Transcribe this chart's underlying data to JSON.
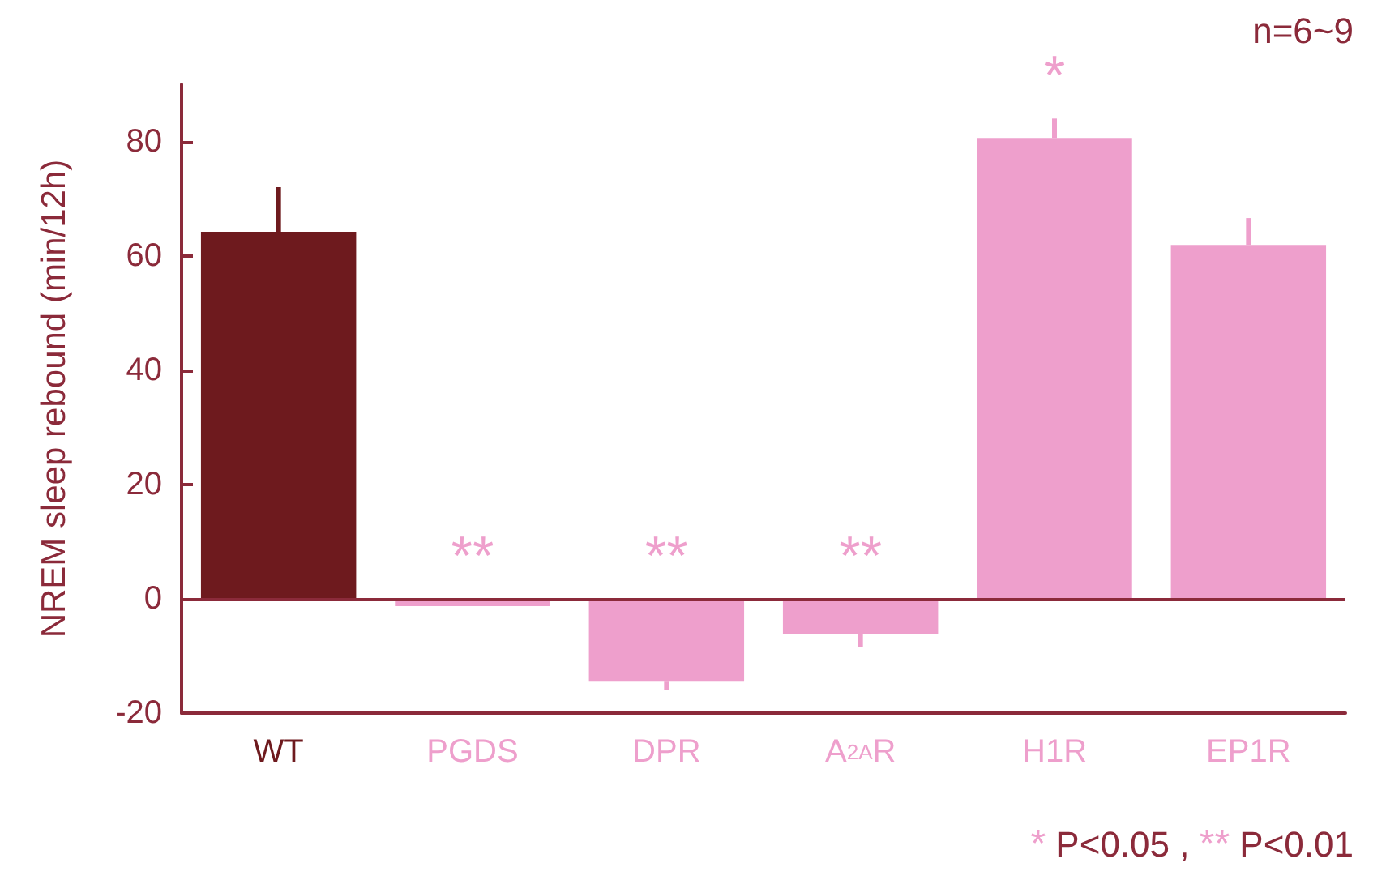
{
  "chart_data": {
    "type": "bar",
    "ylabel": "NREM sleep rebound (min/12h)",
    "categories": [
      "WT",
      "PGDS",
      "DPR",
      "A$_{2A}$R",
      "H1R",
      "EP1R"
    ],
    "values": [
      64.2,
      -1.3,
      -14.5,
      -6.1,
      80.6,
      61.9
    ],
    "colors": [
      "#6e1a1e",
      "#ee9fcc",
      "#ee9fcc",
      "#ee9fcc",
      "#ee9fcc",
      "#ee9fcc"
    ],
    "errors": [
      [
        64.2,
        72
      ],
      null,
      [
        -16,
        -14.5
      ],
      [
        -8.4,
        -6.1
      ],
      [
        80.6,
        84
      ],
      [
        61.9,
        66.6
      ]
    ],
    "ylim": [
      -20,
      90
    ],
    "yticks": [
      -20,
      0,
      20,
      40,
      60,
      80
    ],
    "ref_lines": [
      {
        "axis": "y",
        "value": 0,
        "color": "#8b2a3a"
      }
    ],
    "value_labels": [
      null,
      "**",
      "**",
      "**",
      "*",
      null
    ],
    "annotations": [
      "n=6~9",
      "* P<0.05 , ** P<0.01"
    ]
  }
}
